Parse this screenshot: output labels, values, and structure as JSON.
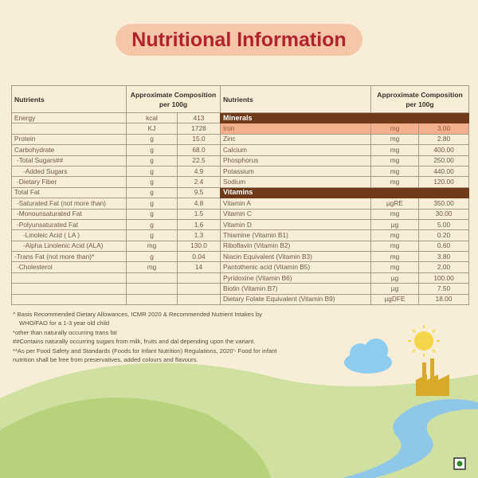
{
  "title": "Nutritional Information",
  "header": {
    "nutrients": "Nutrients",
    "composition": "Approximate Composition per 100g"
  },
  "left_rows": [
    {
      "name": "Energy",
      "unit": "kcal",
      "value": "413",
      "indent": 0
    },
    {
      "name": "",
      "unit": "KJ",
      "value": "1728",
      "indent": 0
    },
    {
      "name": "Protein",
      "unit": "g",
      "value": "15.0",
      "indent": 0
    },
    {
      "name": "Carbohydrate",
      "unit": "g",
      "value": "68.0",
      "indent": 0
    },
    {
      "name": "-Total Sugars##",
      "unit": "g",
      "value": "22.5",
      "indent": 1
    },
    {
      "name": "-Added Sugars",
      "unit": "g",
      "value": "4.9",
      "indent": 2
    },
    {
      "name": "-Dietary Fiber",
      "unit": "g",
      "value": "2.4",
      "indent": 1
    },
    {
      "name": "Total Fat",
      "unit": "g",
      "value": "9.5",
      "indent": 0
    },
    {
      "name": "-Saturated Fat (not more than)",
      "unit": "g",
      "value": "4.8",
      "indent": 1
    },
    {
      "name": "-Monounsaturated Fat",
      "unit": "g",
      "value": "1.5",
      "indent": 1
    },
    {
      "name": "-Polyunsaturated Fat",
      "unit": "g",
      "value": "1.6",
      "indent": 1
    },
    {
      "name": "-Linoleic Acid ( LA )",
      "unit": "g",
      "value": "1.3",
      "indent": 2
    },
    {
      "name": "-Alpha Linolenic Acid (ALA)",
      "unit": "mg",
      "value": "130.0",
      "indent": 2
    },
    {
      "name": "-Trans Fat (not more than)*",
      "unit": "g",
      "value": "0.04",
      "indent": 0
    },
    {
      "name": "-Cholesterol",
      "unit": "mg",
      "value": "14",
      "indent": 1
    },
    {
      "name": "",
      "unit": "",
      "value": "",
      "indent": 0
    },
    {
      "name": "",
      "unit": "",
      "value": "",
      "indent": 0
    },
    {
      "name": "",
      "unit": "",
      "value": "",
      "indent": 0
    }
  ],
  "right_rows": [
    {
      "section": "Minerals"
    },
    {
      "name": "Iron",
      "unit": "mg",
      "value": "3.00",
      "highlight": true
    },
    {
      "name": "Zinc",
      "unit": "mg",
      "value": "2.80"
    },
    {
      "name": "Calcium",
      "unit": "mg",
      "value": "400.00"
    },
    {
      "name": "Phosphorus",
      "unit": "mg",
      "value": "250.00"
    },
    {
      "name": "Potassium",
      "unit": "mg",
      "value": "440.00"
    },
    {
      "name": "Sodium",
      "unit": "mg",
      "value": "120.00"
    },
    {
      "section": "Vitamins"
    },
    {
      "name": "Vitamin A",
      "unit": "µgRE",
      "value": "350.00"
    },
    {
      "name": "Vitamin C",
      "unit": "mg",
      "value": "30.00"
    },
    {
      "name": "Vitamin D",
      "unit": "µg",
      "value": "5.00"
    },
    {
      "name": "Thiamine (Vitamin B1)",
      "unit": "mg",
      "value": "0.20"
    },
    {
      "name": "Riboflavin (Vitamin B2)",
      "unit": "mg",
      "value": "0.60"
    },
    {
      "name": "Niacin Equivalent (Vitamin B3)",
      "unit": "mg",
      "value": "3.80"
    },
    {
      "name": "Pantothenic acid (Vitamin B5)",
      "unit": "mg",
      "value": "2.00"
    },
    {
      "name": "Pyridoxine (Vitamin B6)",
      "unit": "µg",
      "value": "100.00"
    },
    {
      "name": "Biotin (Vitamin B7)",
      "unit": "µg",
      "value": "7.50"
    },
    {
      "name": "Dietary Folate Equivalent (Vitamin B9)",
      "unit": "µgDFE",
      "value": "18.00"
    }
  ],
  "notes": [
    "^ Basis Recommended Dietary Allowances, ICMR 2020 & Recommended Nutrient Intakes by",
    "  WHO/FAO for a 1-3 year old child",
    "*other than naturally occurring trans fat",
    "##Contains naturally occurring sugars from milk, fruits and dal depending upon the variant.",
    "**As per Food Safety and Standards (Foods for Infant Nutrition) Regulations, 2020'- Food for infant",
    "nutrition   shall be free from preservatives, added colours and flavours."
  ],
  "colors": {
    "title_bg": "#f6c6a8",
    "title_text": "#b3222c",
    "section_bg": "#6e3a1a",
    "highlight": "#f4b08e"
  },
  "icons": [
    "cloud-icon",
    "sun-icon",
    "factory-icon",
    "veg-mark-icon"
  ]
}
